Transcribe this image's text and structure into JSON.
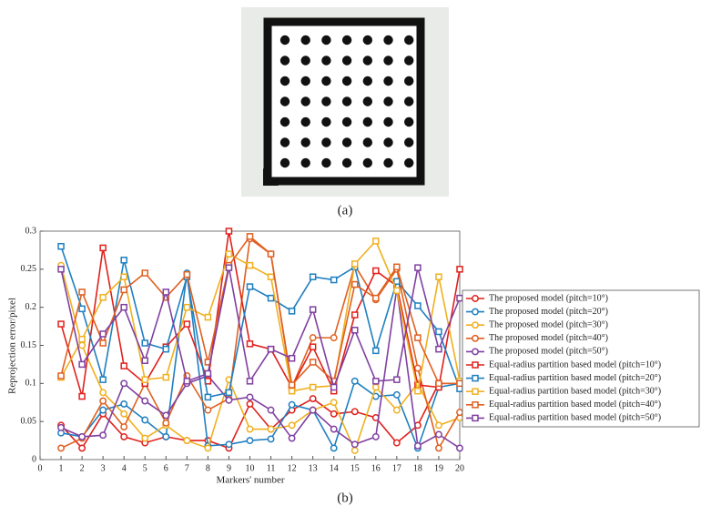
{
  "panels": [
    "(a)",
    "(b)"
  ],
  "chart_data": {
    "type": "line",
    "xlabel": "Markers' number",
    "ylabel": "Reprojection error/pixel",
    "x": [
      1,
      2,
      3,
      4,
      5,
      6,
      7,
      8,
      9,
      10,
      11,
      12,
      13,
      14,
      15,
      16,
      17,
      18,
      19,
      20
    ],
    "xlim": [
      0,
      20
    ],
    "xticks": [
      0,
      1,
      2,
      3,
      4,
      5,
      6,
      7,
      8,
      9,
      10,
      11,
      12,
      13,
      14,
      15,
      16,
      17,
      18,
      19,
      20
    ],
    "ylim": [
      0,
      0.3
    ],
    "yticks": [
      0,
      0.05,
      0.1,
      0.15,
      0.2,
      0.25,
      0.3
    ],
    "legend": "right",
    "series": [
      {
        "name": "The proposed model (pitch=10°)",
        "color": "#e0201b",
        "marker": "circle",
        "values": [
          0.045,
          0.015,
          0.06,
          0.03,
          0.022,
          0.03,
          0.025,
          0.025,
          0.015,
          0.073,
          0.04,
          0.065,
          0.08,
          0.06,
          0.063,
          0.055,
          0.022,
          0.045,
          0.1,
          0.1
        ]
      },
      {
        "name": "The proposed model (pitch=20°)",
        "color": "#1f7fc0",
        "marker": "circle",
        "values": [
          0.035,
          0.03,
          0.065,
          0.073,
          0.052,
          0.03,
          0.245,
          0.018,
          0.02,
          0.025,
          0.027,
          0.072,
          0.065,
          0.015,
          0.103,
          0.083,
          0.085,
          0.015,
          0.095,
          0.1
        ]
      },
      {
        "name": "The proposed model (pitch=30°)",
        "color": "#f0b020",
        "marker": "circle",
        "values": [
          0.255,
          0.15,
          0.088,
          0.06,
          0.028,
          0.045,
          0.025,
          0.015,
          0.105,
          0.04,
          0.04,
          0.045,
          0.065,
          0.075,
          0.012,
          0.095,
          0.065,
          0.1,
          0.045,
          0.055
        ]
      },
      {
        "name": "The proposed model (pitch=40°)",
        "color": "#e06020",
        "marker": "circle",
        "values": [
          0.015,
          0.028,
          0.077,
          0.043,
          0.1,
          0.048,
          0.11,
          0.065,
          0.08,
          0.29,
          0.27,
          0.095,
          0.16,
          0.16,
          0.255,
          0.21,
          0.25,
          0.12,
          0.015,
          0.062
        ]
      },
      {
        "name": "The proposed model (pitch=50°)",
        "color": "#8040a0",
        "marker": "circle",
        "values": [
          0.042,
          0.03,
          0.032,
          0.1,
          0.077,
          0.058,
          0.1,
          0.11,
          0.078,
          0.082,
          0.065,
          0.028,
          0.065,
          0.04,
          0.02,
          0.03,
          0.225,
          0.018,
          0.033,
          0.015
        ]
      },
      {
        "name": "Equal-radius partition based model (pitch=10°)",
        "color": "#e0201b",
        "marker": "square",
        "values": [
          0.178,
          0.083,
          0.278,
          0.123,
          0.1,
          0.148,
          0.178,
          0.103,
          0.3,
          0.152,
          0.145,
          0.095,
          0.148,
          0.09,
          0.19,
          0.248,
          0.228,
          0.098,
          0.095,
          0.25
        ]
      },
      {
        "name": "Equal-radius partition based model (pitch=20°)",
        "color": "#1f7fc0",
        "marker": "square",
        "values": [
          0.28,
          0.198,
          0.105,
          0.262,
          0.153,
          0.145,
          0.24,
          0.082,
          0.088,
          0.227,
          0.212,
          0.195,
          0.24,
          0.236,
          0.253,
          0.143,
          0.234,
          0.202,
          0.168,
          0.093
        ]
      },
      {
        "name": "Equal-radius partition based model (pitch=30°)",
        "color": "#f0b020",
        "marker": "square",
        "values": [
          0.108,
          0.158,
          0.213,
          0.24,
          0.105,
          0.108,
          0.2,
          0.187,
          0.27,
          0.255,
          0.24,
          0.09,
          0.095,
          0.097,
          0.257,
          0.287,
          0.222,
          0.09,
          0.24,
          0.103
        ]
      },
      {
        "name": "Equal-radius partition based model (pitch=40°)",
        "color": "#e06020",
        "marker": "square",
        "values": [
          0.11,
          0.22,
          0.153,
          0.223,
          0.245,
          0.213,
          0.243,
          0.128,
          0.255,
          0.293,
          0.27,
          0.098,
          0.128,
          0.103,
          0.23,
          0.212,
          0.253,
          0.16,
          0.1,
          0.1
        ]
      },
      {
        "name": "Equal-radius partition based model (pitch=50°)",
        "color": "#8040a0",
        "marker": "square",
        "values": [
          0.25,
          0.125,
          0.165,
          0.2,
          0.13,
          0.22,
          0.103,
          0.113,
          0.252,
          0.103,
          0.145,
          0.133,
          0.197,
          0.095,
          0.17,
          0.103,
          0.105,
          0.252,
          0.145,
          0.212
        ]
      }
    ]
  }
}
